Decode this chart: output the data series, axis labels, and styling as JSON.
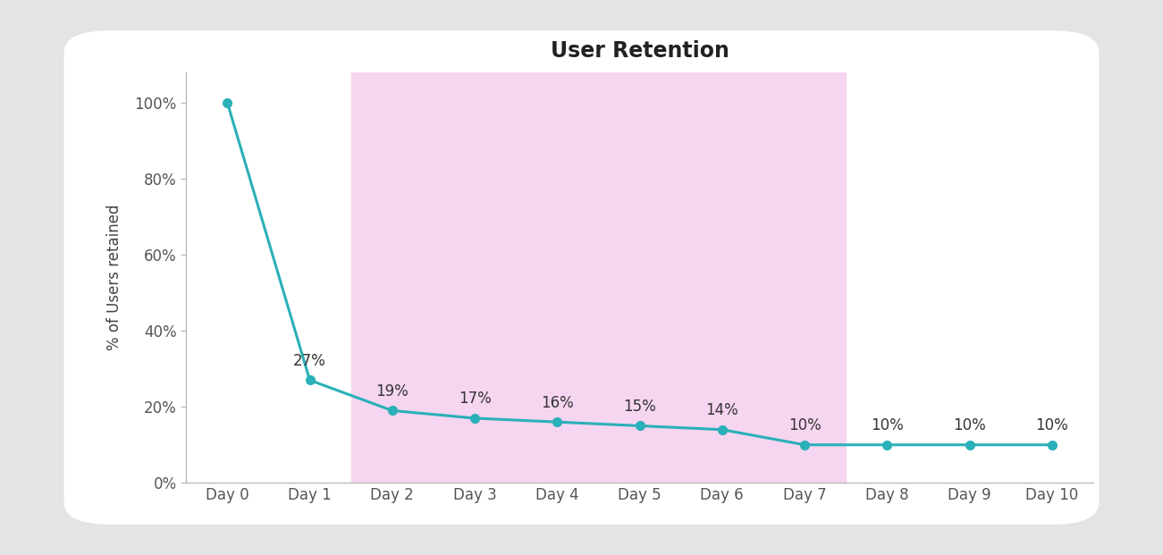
{
  "title": "User Retention",
  "xlabel": "",
  "ylabel": "% of Users retained",
  "categories": [
    "Day 0",
    "Day 1",
    "Day 2",
    "Day 3",
    "Day 4",
    "Day 5",
    "Day 6",
    "Day 7",
    "Day 8",
    "Day 9",
    "Day 10"
  ],
  "values": [
    100,
    27,
    19,
    17,
    16,
    15,
    14,
    10,
    10,
    10,
    10
  ],
  "yticks": [
    0,
    20,
    40,
    60,
    80,
    100
  ],
  "ytick_labels": [
    "0%",
    "20%",
    "40%",
    "60%",
    "80%",
    "100%"
  ],
  "line_color": "#2ab0b8",
  "marker_color": "#2ab0b8",
  "highlight_xstart": 2,
  "highlight_xend": 7,
  "highlight_color": "#f5d5f0",
  "background_color": "#ffffff",
  "outer_background": "#e4e4e4",
  "title_fontsize": 17,
  "label_fontsize": 12,
  "tick_fontsize": 12,
  "annotation_fontsize": 12,
  "line_width": 2.2,
  "marker_size": 7,
  "ylim_max": 108
}
